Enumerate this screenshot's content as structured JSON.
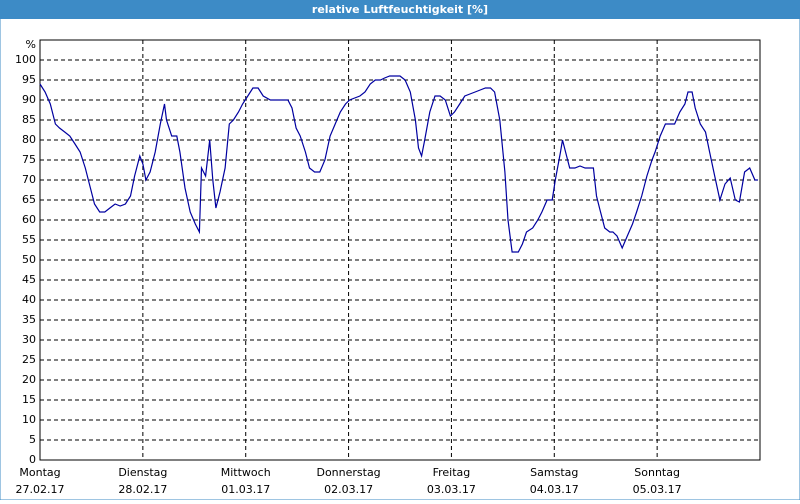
{
  "chart_data": {
    "type": "line",
    "title": "relative Luftfeuchtigkeit [%]",
    "y_unit": "%",
    "xlim": [
      0,
      7
    ],
    "ylim": [
      0,
      105
    ],
    "yticks": [
      0,
      5,
      10,
      15,
      20,
      25,
      30,
      35,
      40,
      45,
      50,
      55,
      60,
      65,
      70,
      75,
      80,
      85,
      90,
      95,
      100
    ],
    "xticks": [
      {
        "value": 0,
        "label": [
          "Montag",
          "27.02.17"
        ]
      },
      {
        "value": 1,
        "label": [
          "Dienstag",
          "28.02.17"
        ]
      },
      {
        "value": 2,
        "label": [
          "Mittwoch",
          "01.03.17"
        ]
      },
      {
        "value": 3,
        "label": [
          "Donnerstag",
          "02.03.17"
        ]
      },
      {
        "value": 4,
        "label": [
          "Freitag",
          "03.03.17"
        ]
      },
      {
        "value": 5,
        "label": [
          "Samstag",
          "04.03.17"
        ]
      },
      {
        "value": 6,
        "label": [
          "Sonntag",
          "05.03.17"
        ]
      }
    ],
    "grid": true,
    "series": [
      {
        "color": "#0000a0",
        "x": [
          0,
          0.05,
          0.1,
          0.15,
          0.19,
          0.24,
          0.29,
          0.34,
          0.39,
          0.44,
          0.49,
          0.53,
          0.58,
          0.63,
          0.68,
          0.73,
          0.78,
          0.83,
          0.88,
          0.92,
          0.97,
          1.0,
          1.03,
          1.07,
          1.12,
          1.17,
          1.21,
          1.23,
          1.28,
          1.33,
          1.36,
          1.41,
          1.46,
          1.51,
          1.55,
          1.57,
          1.61,
          1.65,
          1.68,
          1.71,
          1.75,
          1.8,
          1.84,
          1.88,
          1.93,
          1.97,
          2.02,
          2.07,
          2.12,
          2.17,
          2.24,
          2.33,
          2.41,
          2.45,
          2.49,
          2.53,
          2.58,
          2.62,
          2.67,
          2.72,
          2.77,
          2.82,
          2.87,
          2.92,
          2.97,
          3.01,
          3.06,
          3.11,
          3.16,
          3.21,
          3.26,
          3.31,
          3.35,
          3.4,
          3.45,
          3.5,
          3.55,
          3.6,
          3.65,
          3.68,
          3.71,
          3.74,
          3.79,
          3.84,
          3.89,
          3.94,
          3.99,
          4.03,
          4.08,
          4.13,
          4.18,
          4.23,
          4.28,
          4.33,
          4.38,
          4.42,
          4.47,
          4.52,
          4.55,
          4.59,
          4.65,
          4.69,
          4.73,
          4.79,
          4.84,
          4.88,
          4.93,
          4.98,
          5.01,
          5.06,
          5.08,
          5.12,
          5.15,
          5.2,
          5.25,
          5.3,
          5.35,
          5.38,
          5.41,
          5.44,
          5.49,
          5.54,
          5.57,
          5.61,
          5.66,
          5.71,
          5.76,
          5.8,
          5.85,
          5.9,
          5.95,
          5.98,
          6.03,
          6.08,
          6.12,
          6.17,
          6.22,
          6.27,
          6.3,
          6.34,
          6.37,
          6.42,
          6.47,
          6.51,
          6.56,
          6.61,
          6.66,
          6.71,
          6.76,
          6.8,
          6.85,
          6.9,
          6.95,
          6.98
        ],
        "values": [
          94,
          92,
          89,
          84,
          83,
          82,
          81,
          79,
          77,
          73,
          68,
          64,
          62,
          62,
          63,
          64,
          63.5,
          64,
          66,
          71,
          76,
          74,
          70,
          72,
          77,
          84,
          89,
          85,
          81,
          81,
          77,
          68,
          62,
          59,
          57,
          73,
          71,
          80,
          70,
          63,
          67,
          73,
          84,
          85,
          87,
          89,
          91,
          93,
          93,
          91,
          90,
          90,
          90,
          88,
          83,
          81,
          77,
          73,
          72,
          72,
          75,
          81,
          84,
          87,
          89,
          90,
          90.5,
          91,
          92,
          94,
          95,
          95,
          95.5,
          96,
          96,
          96,
          95,
          92,
          85,
          78,
          76,
          80,
          87,
          91,
          91,
          90,
          86,
          87,
          89,
          91,
          91.5,
          92,
          92.5,
          93,
          93,
          92,
          85,
          72,
          60,
          52,
          52,
          54,
          57,
          58,
          60,
          62,
          65,
          65,
          70,
          77,
          80,
          76,
          73,
          73,
          73.5,
          73,
          73,
          73,
          66,
          63,
          58,
          57,
          57,
          56,
          53,
          56,
          59,
          62,
          66,
          71,
          75,
          77,
          81,
          84,
          84,
          84,
          87,
          89,
          92,
          92,
          88,
          84,
          82,
          77,
          71,
          65,
          69,
          70.5,
          65,
          64.5,
          72,
          73,
          70,
          70
        ]
      }
    ]
  }
}
